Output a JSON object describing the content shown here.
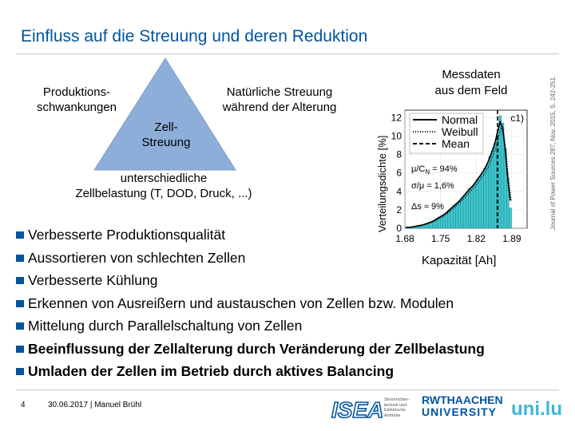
{
  "slide": {
    "title": "Einfluss auf die Streuung und deren Reduktion",
    "triangle": {
      "top_left_line1": "Produktions-",
      "top_left_line2": "schwankungen",
      "top_right_line1": "Natürliche Streuung",
      "top_right_line2": "während der Alterung",
      "center_line1": "Zell-",
      "center_line2": "Streuung",
      "bottom_line1": "unterschiedliche",
      "bottom_line2": "Zellbelastung (T, DOD, Druck, ...)"
    },
    "bullets": [
      {
        "text": "Verbesserte Produktionsqualität",
        "bold": false
      },
      {
        "text": "Aussortieren von schlechten Zellen",
        "bold": false
      },
      {
        "text": "Verbesserte Kühlung",
        "bold": false
      },
      {
        "text": "Erkennen von Ausreißern und austauschen von Zellen bzw. Modulen",
        "bold": false
      },
      {
        "text": "Mittelung durch Parallelschaltung von Zellen",
        "bold": false
      },
      {
        "text": "Beeinflussung der Zellalterung durch Veränderung der Zellbelastung",
        "bold": true
      },
      {
        "text": "Umladen der Zellen im Betrieb durch aktives Balancing",
        "bold": true
      }
    ],
    "accent_color": "#00549F",
    "triangle_color": "#8DAED8"
  },
  "chart_data": {
    "type": "bar",
    "title_line1": "Messdaten",
    "title_line2": "aus dem Feld",
    "xlabel": "Kapazität [Ah]",
    "ylabel": "Verteilungsdichte [%]",
    "x_ticks": [
      "1.68",
      "1.75",
      "1.82",
      "1.89"
    ],
    "y_ticks": [
      "0",
      "2",
      "4",
      "6",
      "8",
      "10",
      "12"
    ],
    "xlim": [
      1.68,
      1.92
    ],
    "ylim": [
      0,
      12.8
    ],
    "bin_centers": [
      1.682,
      1.687,
      1.692,
      1.697,
      1.702,
      1.707,
      1.712,
      1.717,
      1.722,
      1.727,
      1.732,
      1.737,
      1.742,
      1.747,
      1.752,
      1.757,
      1.762,
      1.767,
      1.772,
      1.777,
      1.782,
      1.787,
      1.792,
      1.797,
      1.802,
      1.807,
      1.812,
      1.817,
      1.822,
      1.827,
      1.832,
      1.837,
      1.842,
      1.847,
      1.852,
      1.857,
      1.862,
      1.867,
      1.872,
      1.877,
      1.882,
      1.887
    ],
    "values": [
      0.1,
      0.1,
      0.1,
      0.2,
      0.2,
      0.3,
      0.3,
      0.4,
      0.5,
      0.6,
      0.7,
      0.8,
      1.0,
      1.2,
      1.3,
      1.5,
      1.7,
      2.0,
      2.2,
      2.5,
      2.7,
      2.9,
      3.3,
      3.6,
      3.9,
      4.3,
      4.5,
      4.8,
      5.3,
      5.6,
      6.0,
      6.5,
      6.9,
      7.8,
      8.4,
      9.2,
      10.2,
      12.2,
      11.4,
      8.6,
      5.4,
      2.2
    ],
    "curves": [
      {
        "name": "Normal",
        "style": "solid"
      },
      {
        "name": "Weibull",
        "style": "dotted"
      },
      {
        "name": "Mean",
        "style": "dashed"
      }
    ],
    "panel_label": "c1)",
    "mean_x": 1.862,
    "annotations": [
      "μ/C",
      "N",
      "= 94%",
      "σ/μ = 1,6%",
      "Δs ≈ 9%"
    ],
    "side_note": "Journal of Power Sources 287, Nov. 2015, S. 242-251.",
    "bar_color": "#40C8D0"
  },
  "footer": {
    "page_number": "4",
    "date_author": "30.06.2017 | Manuel Brühl",
    "isea_logo": "ISEA",
    "isea_sub_line1": "Stromrichter-",
    "isea_sub_line2": "technik und",
    "isea_sub_line3": "Elektrische",
    "isea_sub_line4": "Antriebe",
    "rwth_line1": "RWTHAACHEN",
    "rwth_line2": "UNIVERSITY",
    "uni_logo": "uni.lu"
  }
}
